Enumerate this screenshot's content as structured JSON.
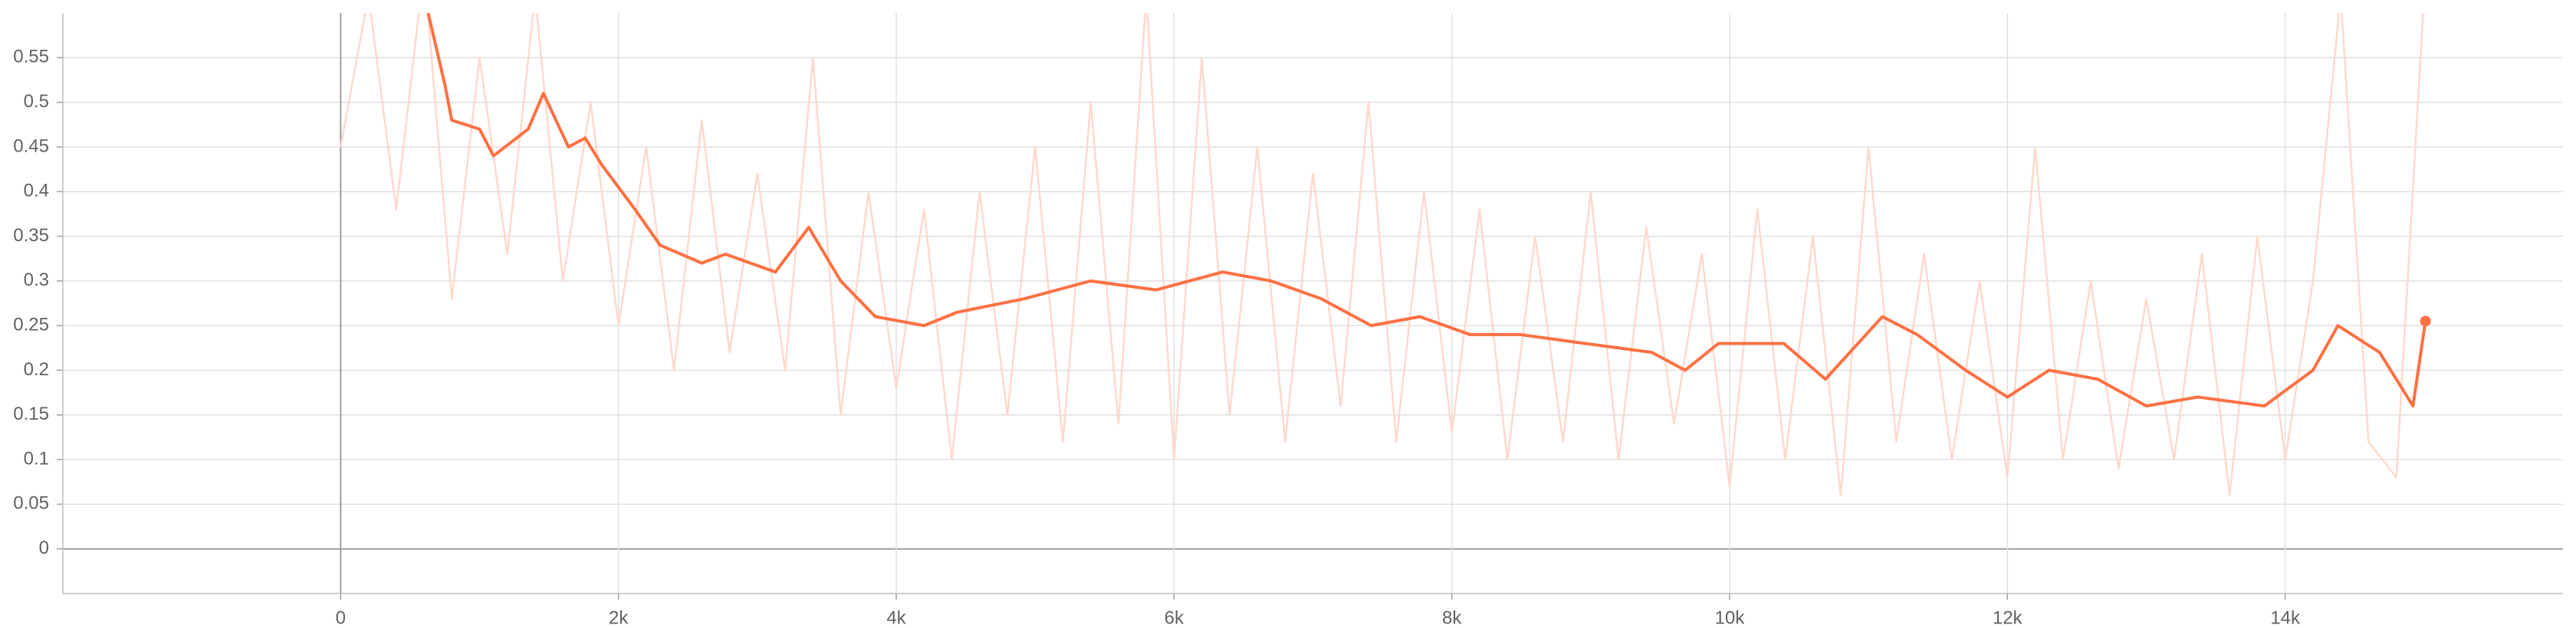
{
  "chart_data": {
    "type": "line",
    "xlim": [
      -2000,
      16000
    ],
    "ylim": [
      -0.05,
      0.6
    ],
    "xticks": [
      0,
      {
        "value": 2000,
        "label": "2k"
      },
      {
        "value": 4000,
        "label": "4k"
      },
      {
        "value": 6000,
        "label": "6k"
      },
      {
        "value": 8000,
        "label": "8k"
      },
      {
        "value": 10000,
        "label": "10k"
      },
      {
        "value": 12000,
        "label": "12k"
      },
      {
        "value": 14000,
        "label": "14k"
      }
    ],
    "yticks": [
      0,
      0.05,
      0.1,
      0.15,
      0.2,
      0.25,
      0.3,
      0.35,
      0.4,
      0.45,
      0.5,
      0.55
    ],
    "grid": true,
    "series": [
      {
        "color": "#ffd9cc",
        "x": [
          0,
          200,
          400,
          600,
          800,
          1000,
          1200,
          1400,
          1600,
          1800,
          2000,
          2200,
          2400,
          2600,
          2800,
          3000,
          3200,
          3400,
          3600,
          3800,
          4000,
          4200,
          4400,
          4600,
          4800,
          5000,
          5200,
          5400,
          5600,
          5800,
          6000,
          6200,
          6400,
          6600,
          6800,
          7000,
          7200,
          7400,
          7600,
          7800,
          8000,
          8200,
          8400,
          8600,
          8800,
          9000,
          9200,
          9400,
          9600,
          9800,
          10000,
          10200,
          10400,
          10600,
          10800,
          11000,
          11200,
          11400,
          11600,
          11800,
          12000,
          12200,
          12400,
          12600,
          12800,
          13000,
          13200,
          13400,
          13600,
          13800,
          14000,
          14200,
          14400,
          14600,
          14800,
          15000
        ],
        "values": [
          0.45,
          0.62,
          0.38,
          0.65,
          0.28,
          0.55,
          0.33,
          0.62,
          0.3,
          0.5,
          0.25,
          0.45,
          0.2,
          0.48,
          0.22,
          0.42,
          0.2,
          0.55,
          0.15,
          0.4,
          0.18,
          0.38,
          0.1,
          0.4,
          0.15,
          0.45,
          0.12,
          0.5,
          0.14,
          0.62,
          0.1,
          0.55,
          0.15,
          0.45,
          0.12,
          0.42,
          0.16,
          0.5,
          0.12,
          0.4,
          0.13,
          0.38,
          0.1,
          0.35,
          0.12,
          0.4,
          0.1,
          0.36,
          0.14,
          0.33,
          0.07,
          0.38,
          0.1,
          0.35,
          0.06,
          0.45,
          0.12,
          0.33,
          0.1,
          0.3,
          0.08,
          0.45,
          0.1,
          0.3,
          0.09,
          0.28,
          0.1,
          0.33,
          0.06,
          0.35,
          0.1,
          0.3,
          0.62,
          0.12,
          0.08,
          0.62
        ]
      },
      {
        "color": "#ff7043",
        "x": [
          600,
          750,
          800,
          1000,
          1100,
          1350,
          1460,
          1640,
          1760,
          1880,
          2120,
          2300,
          2600,
          2770,
          3130,
          3370,
          3600,
          3850,
          4200,
          4440,
          4920,
          5400,
          5870,
          6350,
          6700,
          7060,
          7420,
          7770,
          8130,
          8490,
          8960,
          9440,
          9680,
          9920,
          10390,
          10690,
          11100,
          11350,
          11700,
          12000,
          12300,
          12650,
          13000,
          13370,
          13850,
          14200,
          14380,
          14680,
          14920,
          15010
        ],
        "values": [
          0.62,
          0.52,
          0.48,
          0.47,
          0.44,
          0.47,
          0.51,
          0.45,
          0.46,
          0.43,
          0.38,
          0.34,
          0.32,
          0.33,
          0.31,
          0.36,
          0.3,
          0.26,
          0.25,
          0.265,
          0.28,
          0.3,
          0.29,
          0.31,
          0.3,
          0.28,
          0.25,
          0.26,
          0.24,
          0.24,
          0.23,
          0.22,
          0.2,
          0.23,
          0.23,
          0.19,
          0.26,
          0.24,
          0.2,
          0.17,
          0.2,
          0.19,
          0.16,
          0.17,
          0.16,
          0.2,
          0.25,
          0.22,
          0.16,
          0.255
        ]
      }
    ]
  }
}
